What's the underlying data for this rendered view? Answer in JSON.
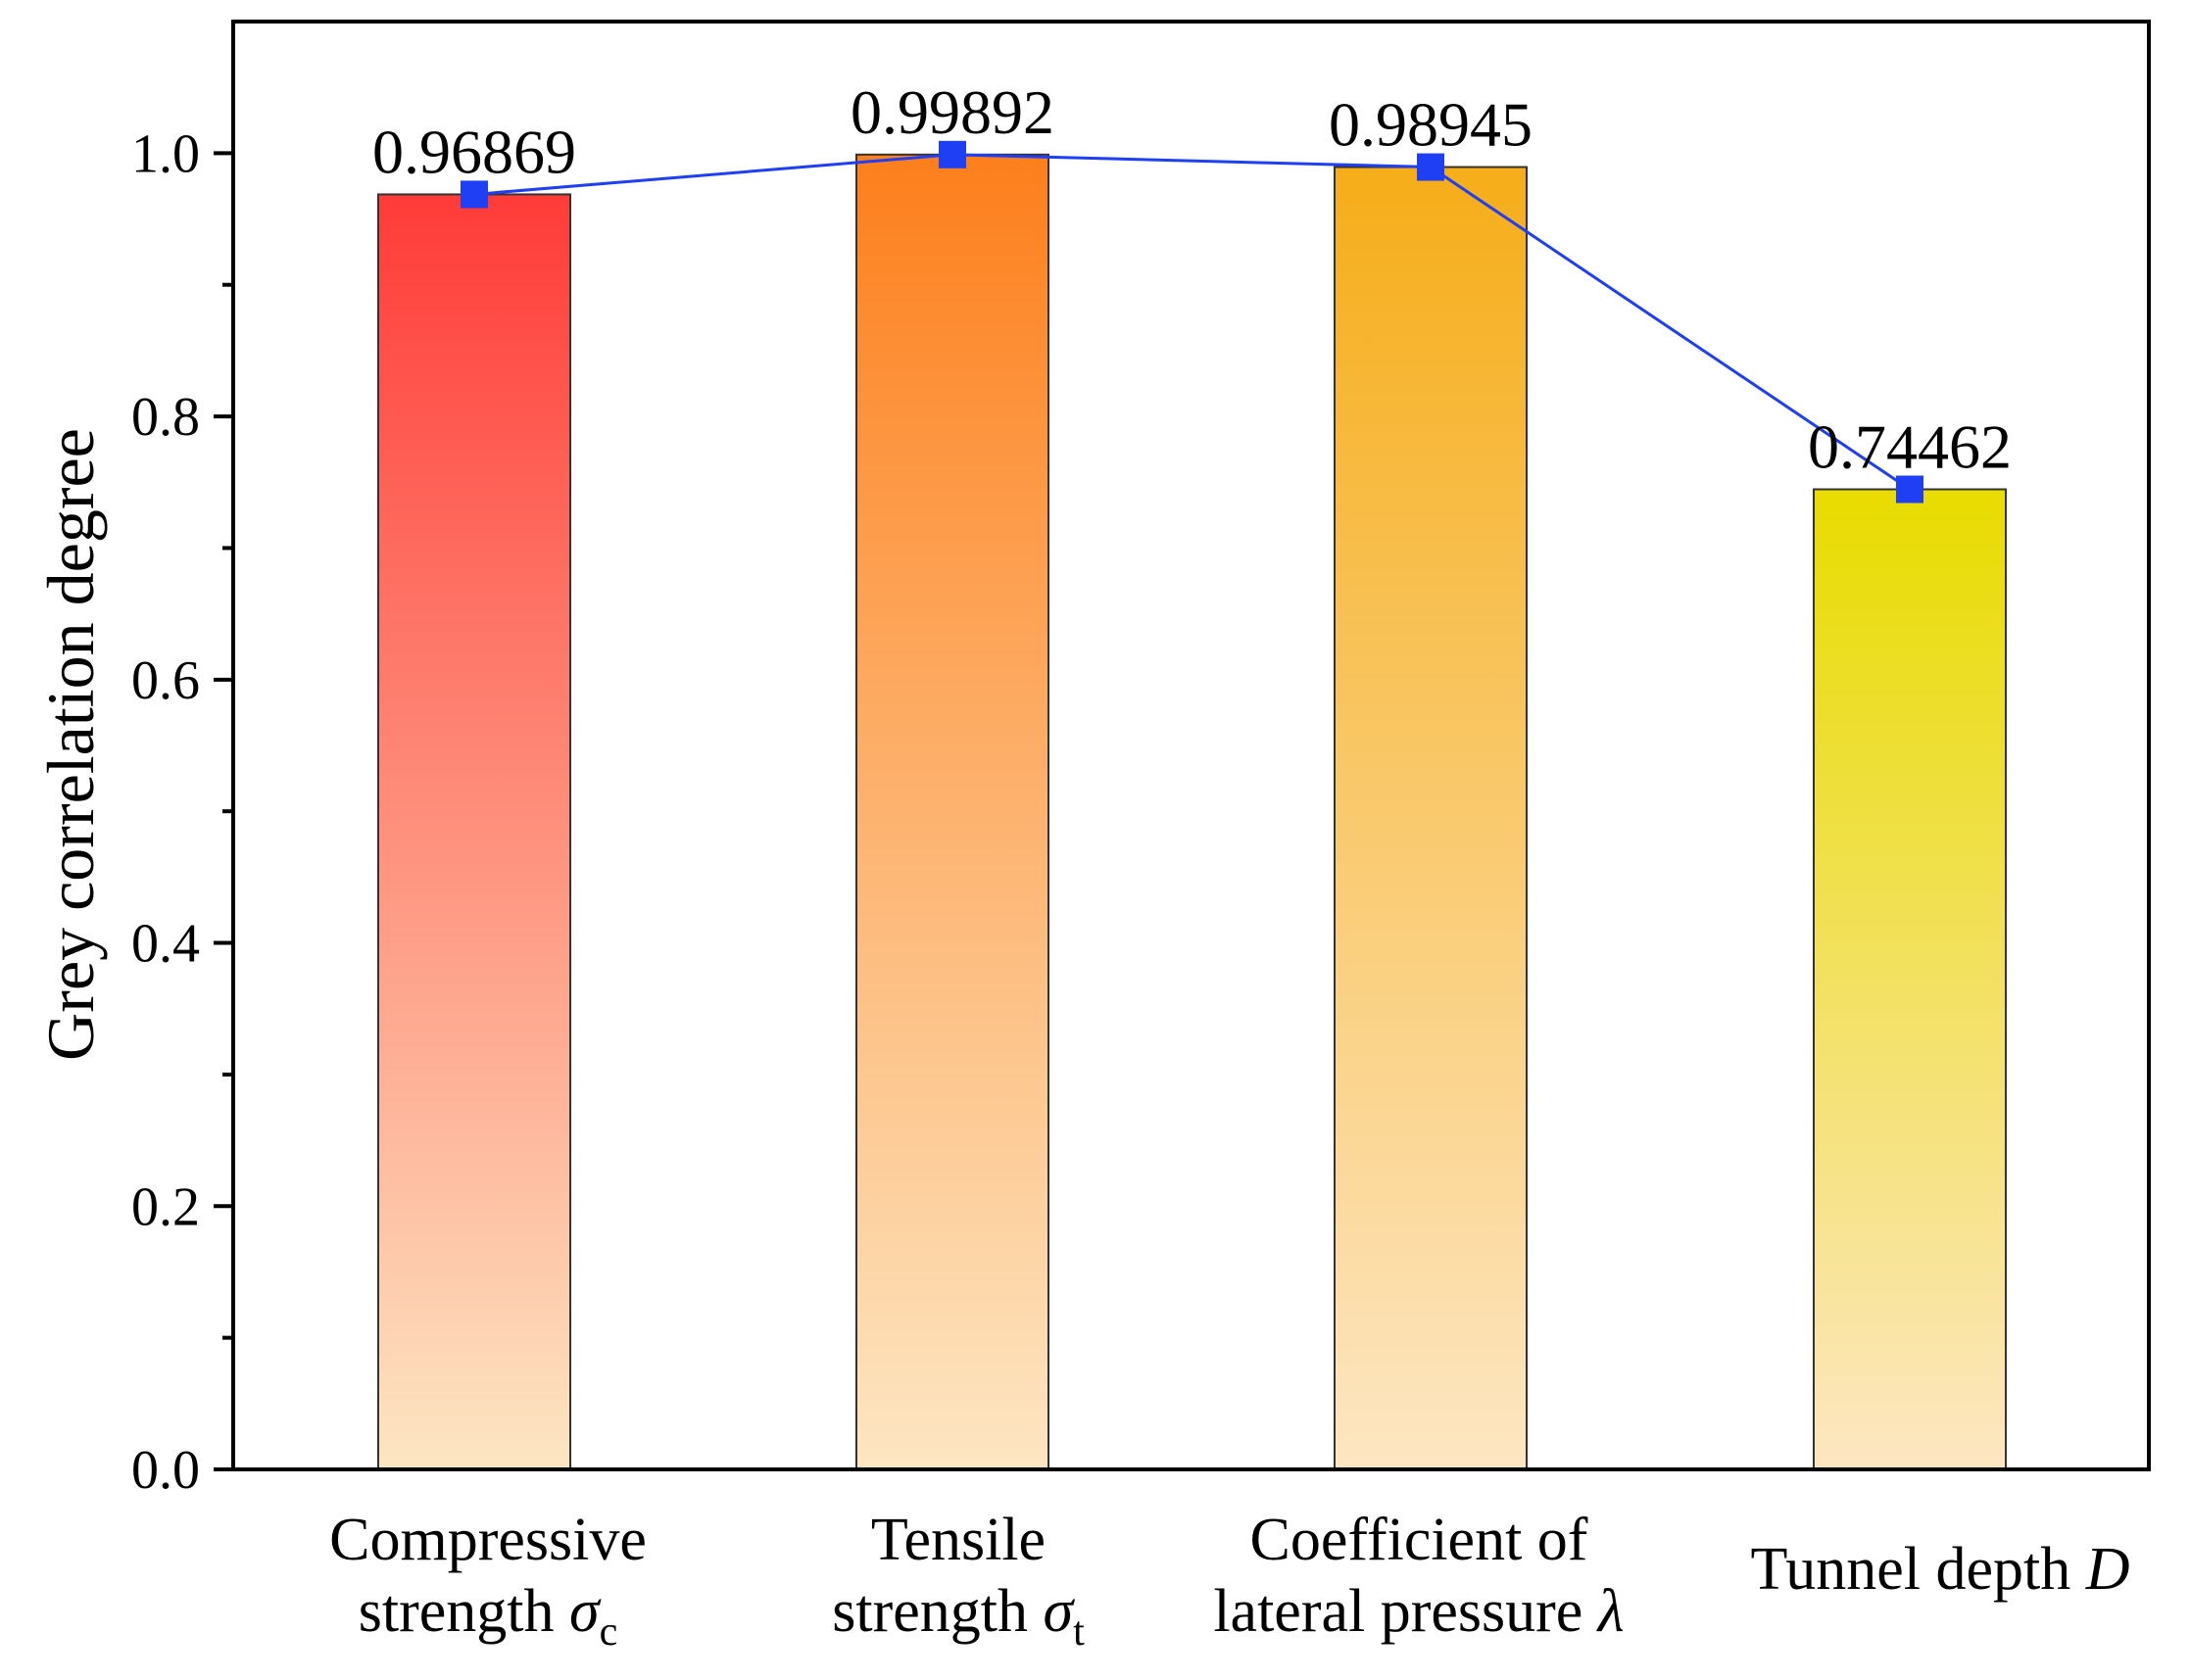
{
  "chart_data": {
    "type": "bar",
    "title": "",
    "xlabel": "",
    "ylabel": "Grey correlation degree",
    "ylim": [
      0,
      1.1
    ],
    "yticks": [
      "0.0",
      "0.2",
      "0.4",
      "0.6",
      "0.8",
      "1.0"
    ],
    "ytick_values": [
      0,
      0.2,
      0.4,
      0.6,
      0.8,
      1.0
    ],
    "grid": false,
    "categories": [
      {
        "line1": "Compressive",
        "line2": "strength ",
        "symbol": "σ",
        "sub": "c"
      },
      {
        "line1": "Tensile",
        "line2": "strength ",
        "symbol": "σ",
        "sub": "t"
      },
      {
        "line1": "Coefficient of",
        "line2": "lateral pressure ",
        "symbol": "λ",
        "sub": ""
      },
      {
        "line1": "",
        "line2": "Tunnel depth ",
        "symbol": "D",
        "sub": ""
      }
    ],
    "values": [
      0.96869,
      0.99892,
      0.98945,
      0.74462
    ],
    "data_labels": [
      "0.96869",
      "0.99892",
      "0.98945",
      "0.74462"
    ],
    "bar_colors": [
      {
        "top": "#ff3b38",
        "bottom": "#fde6c2"
      },
      {
        "top": "#fd7f1c",
        "bottom": "#fde6c2"
      },
      {
        "top": "#f6ad19",
        "bottom": "#fde6c2"
      },
      {
        "top": "#e8dc00",
        "bottom": "#fde6c2"
      }
    ],
    "line_color": "#1f3ff5",
    "marker_color": "#1f3ff5"
  }
}
